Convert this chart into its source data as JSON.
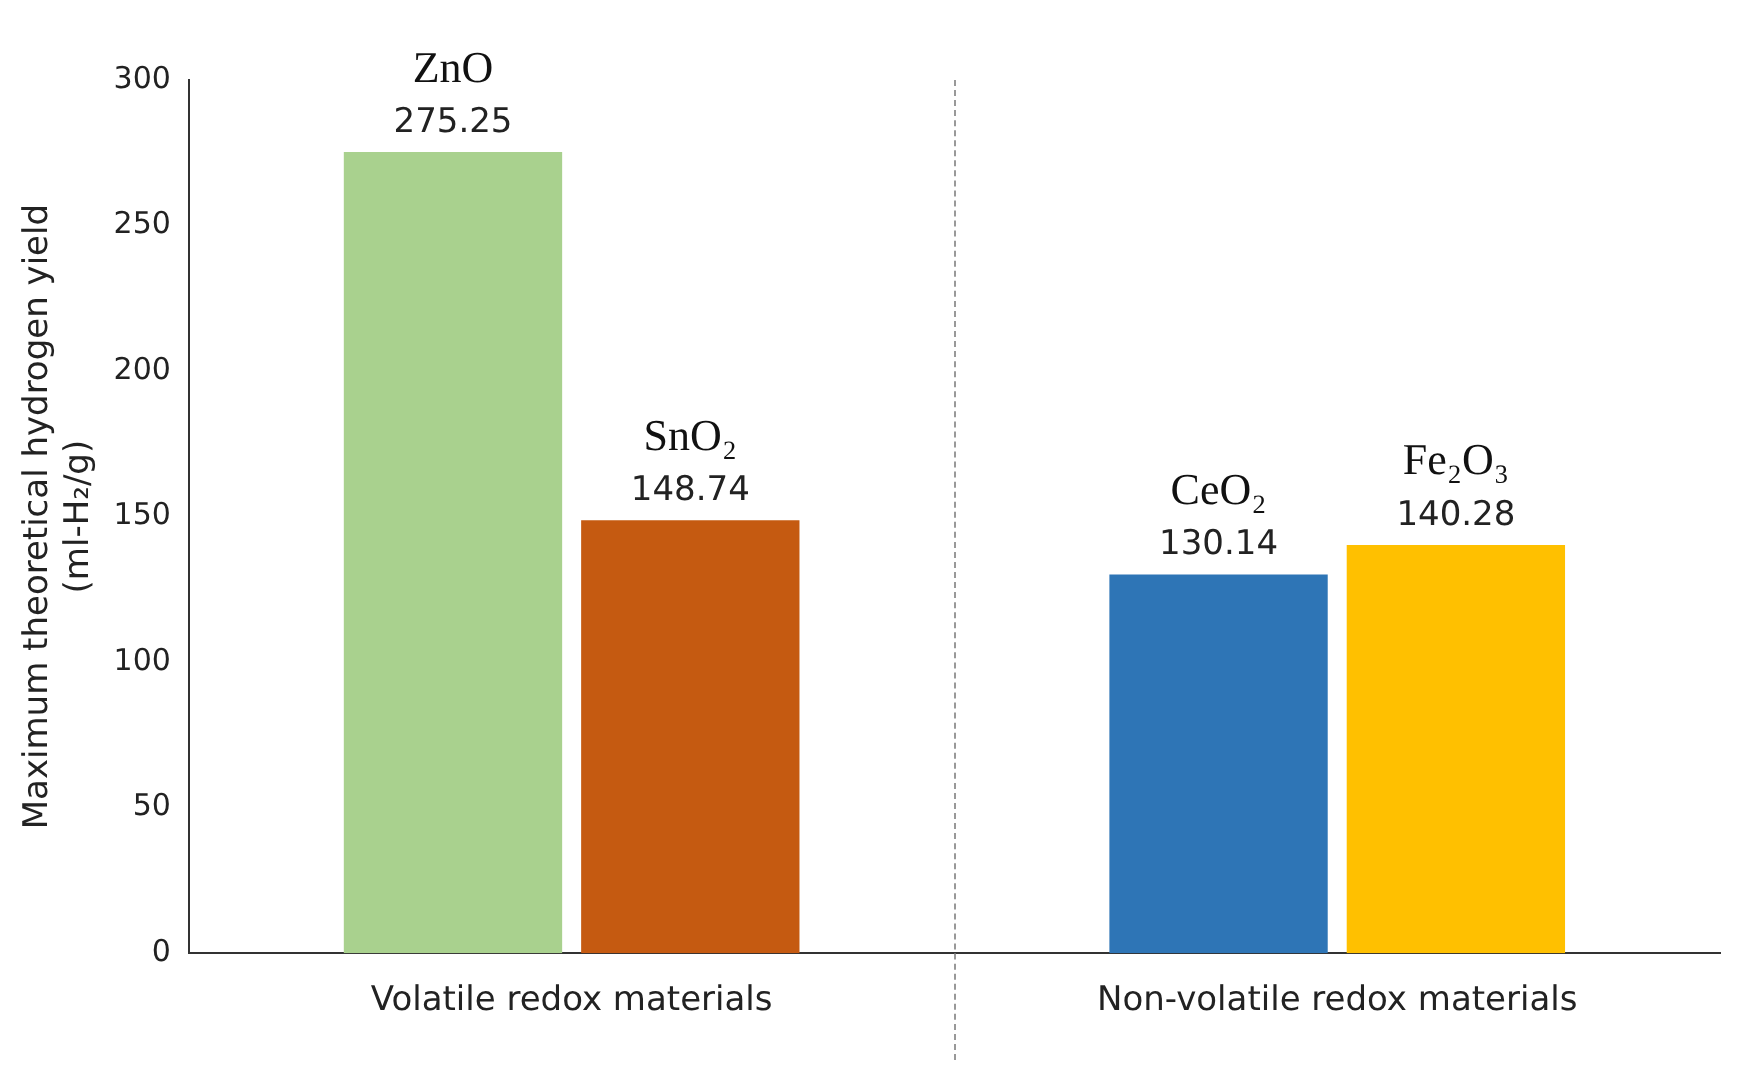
{
  "chart_data": {
    "type": "bar",
    "ylabel": "Maximum theoretical hydrogen yield\n(ml-H₂/g)",
    "categories": [
      "Volatile redox materials",
      "Non-volatile redox materials"
    ],
    "series": [
      {
        "name": "ZnO",
        "color": "#a9d18e",
        "values": [
          275.25,
          null
        ]
      },
      {
        "name": "SnO₂",
        "color": "#c55a11",
        "values": [
          148.74,
          null
        ]
      },
      {
        "name": "CeO₂",
        "color": "#2e75b6",
        "values": [
          null,
          130.14
        ]
      },
      {
        "name": "Fe₂O₃",
        "color": "#ffc000",
        "values": [
          null,
          140.28
        ]
      }
    ],
    "ylim": [
      0,
      300
    ],
    "yticks": [
      0,
      50,
      100,
      150,
      200,
      250,
      300
    ],
    "grid": false,
    "legend": false,
    "data_labels": true
  }
}
